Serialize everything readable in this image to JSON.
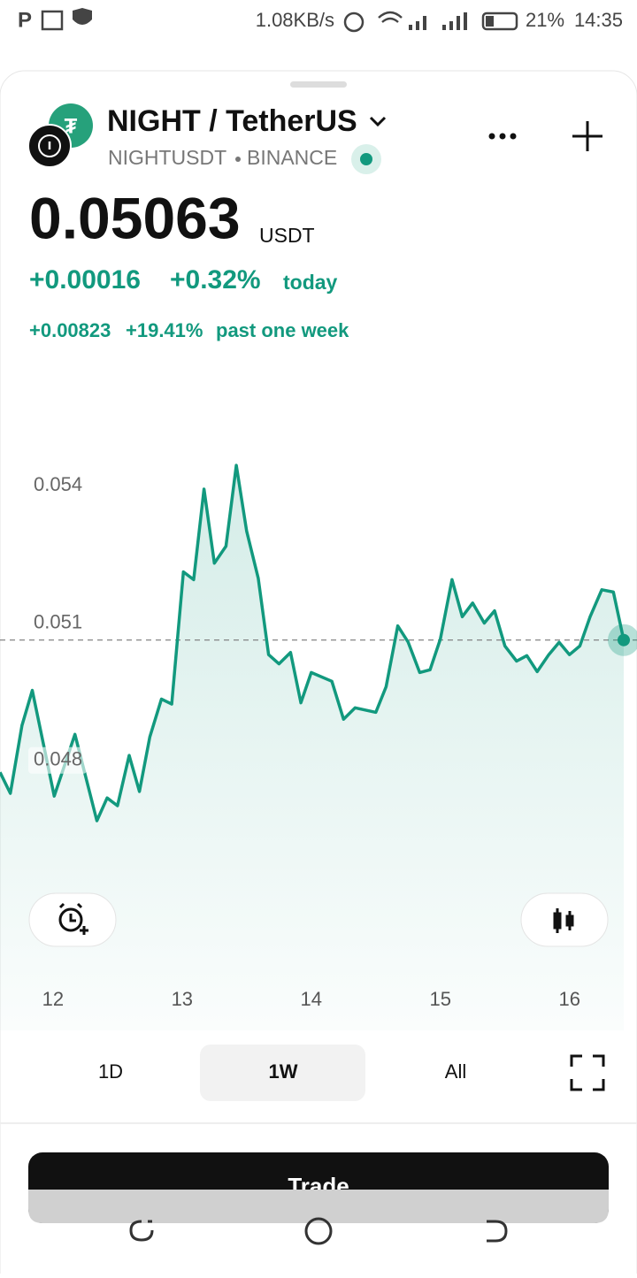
{
  "status": {
    "speed": "1.08KB/s",
    "battery": "21%",
    "time": "14:35"
  },
  "header": {
    "title": "NIGHT / TetherUS",
    "symbol": "NIGHTUSDT",
    "exchange": "BINANCE"
  },
  "price": {
    "value": "0.05063",
    "unit": "USDT"
  },
  "change_today": {
    "abs": "+0.00016",
    "pct": "+0.32%",
    "label": "today"
  },
  "change_week": {
    "abs": "+0.00823",
    "pct": "+19.41%",
    "label": "past one week"
  },
  "chart_data": {
    "type": "line",
    "x": [
      11.59,
      11.67,
      11.76,
      11.84,
      12.01,
      12.17,
      12.34,
      12.42,
      12.5,
      12.59,
      12.67,
      12.75,
      12.84,
      12.92,
      13.01,
      13.09,
      13.17,
      13.25,
      13.34,
      13.42,
      13.5,
      13.59,
      13.67,
      13.75,
      13.84,
      13.92,
      14.0,
      14.16,
      14.25,
      14.34,
      14.5,
      14.58,
      14.67,
      14.75,
      14.84,
      14.92,
      15.0,
      15.09,
      15.17,
      15.25,
      15.34,
      15.42,
      15.5,
      15.59,
      15.67,
      15.75,
      15.84,
      15.92,
      16.0,
      16.08,
      16.16,
      16.25,
      16.34,
      16.42
    ],
    "series": [
      {
        "color": "#12997e",
        "values": [
          0.04774,
          0.04728,
          0.04876,
          0.04953,
          0.04722,
          0.04857,
          0.04668,
          0.04718,
          0.04701,
          0.04811,
          0.04732,
          0.04851,
          0.04934,
          0.04923,
          0.05212,
          0.05195,
          0.05393,
          0.05231,
          0.05268,
          0.05445,
          0.05301,
          0.05198,
          0.05031,
          0.05011,
          0.05036,
          0.04926,
          0.04992,
          0.04973,
          0.0489,
          0.04915,
          0.04905,
          0.04961,
          0.05094,
          0.05059,
          0.04992,
          0.04998,
          0.05065,
          0.05195,
          0.05114,
          0.05144,
          0.051,
          0.05127,
          0.0505,
          0.05017,
          0.05029,
          0.04994,
          0.05031,
          0.05058,
          0.05031,
          0.0505,
          0.05114,
          0.05173,
          0.05168,
          0.05063
        ]
      }
    ],
    "xlim": [
      11.59,
      16.42
    ],
    "xticks": [
      12,
      13,
      14,
      15,
      16
    ],
    "ylim": [
      0.0421,
      0.0565
    ],
    "yticks": [
      0.048,
      0.051,
      0.054
    ]
  },
  "ranges": [
    "1D",
    "1W",
    "All"
  ],
  "trade": "Trade"
}
